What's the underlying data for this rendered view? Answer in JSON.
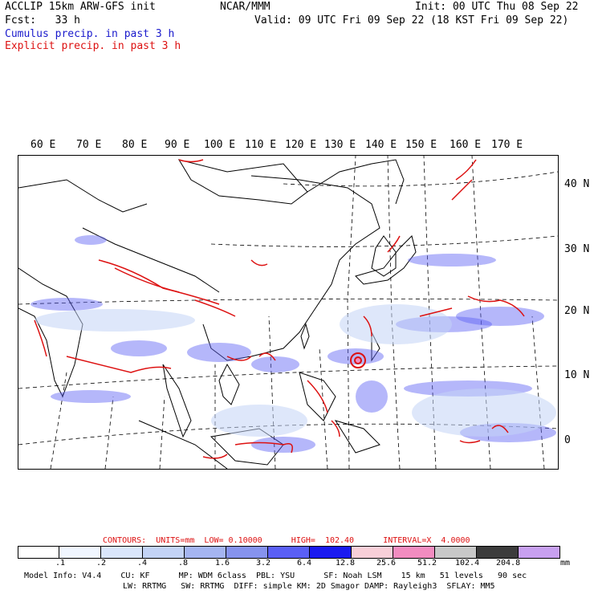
{
  "header": {
    "line1_left": "ACCLIP 15km ARW-GFS init",
    "line1_mid": "NCAR/MMM",
    "line1_right": "Init: 00 UTC Thu 08 Sep 22",
    "line2_left": "Fcst:   33 h",
    "line2_right": "Valid: 09 UTC Fri 09 Sep 22 (18 KST Fri 09 Sep 22)",
    "line3": "Cumulus precip. in past 3 h",
    "line4": "Explicit precip. in past 3 h"
  },
  "colors": {
    "cumulus": "#1a1acc",
    "explicit": "#dd1111"
  },
  "lon_labels": [
    "60 E",
    "70 E",
    "80 E",
    "90 E",
    "100 E",
    "110 E",
    "120 E",
    "130 E",
    "140 E",
    "150 E",
    "160 E",
    "170 E"
  ],
  "lat_labels": [
    "40 N",
    "30 N",
    "20 N",
    "10 N",
    "0"
  ],
  "contours_line": "CONTOURS:  UNITS=mm  LOW= 0.10000      HIGH=  102.40      INTERVAL=X  4.0000",
  "legend": {
    "ticks": [
      ".1",
      ".2",
      ".4",
      ".8",
      "1.6",
      "3.2",
      "6.4",
      "12.8",
      "25.6",
      "51.2",
      "102.4",
      "204.8"
    ],
    "unit": "mm",
    "colors": [
      "#ffffff",
      "#f0f6ff",
      "#dae6fb",
      "#c3d3f6",
      "#a5b5f1",
      "#8693ee",
      "#5a5ff5",
      "#1a1af0",
      "#f8cfd8",
      "#f28cc0",
      "#c8c8c8",
      "#3c3c3c",
      "#c8a0f0"
    ]
  },
  "footer": {
    "line1": "Model Info: V4.4    CU: KF      MP: WDM 6class  PBL: YSU      SF: Noah LSM    15 km   51 levels   90 sec",
    "line2": "LW: RRTMG   SW: RRTMG  DIFF: simple KM: 2D Smagor DAMP: Rayleigh3  SFLAY: MM5"
  }
}
